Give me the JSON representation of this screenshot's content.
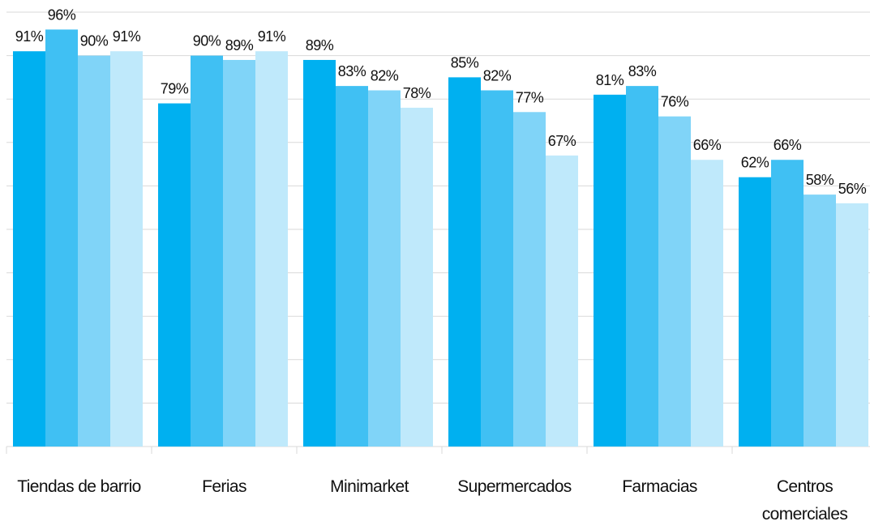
{
  "chart_data": {
    "type": "bar",
    "categories": [
      "Tiendas de barrio",
      "Ferias",
      "Minimarket",
      "Supermercados",
      "Farmacias",
      "Centros comerciales"
    ],
    "series": [
      {
        "color": "#00b0f0",
        "values": [
          91,
          79,
          89,
          85,
          81,
          62
        ],
        "value_labels": [
          "91%",
          "79%",
          "89%",
          "85%",
          "81%",
          "62%"
        ]
      },
      {
        "color": "#40c0f3",
        "values": [
          96,
          90,
          83,
          82,
          83,
          66
        ],
        "value_labels": [
          "96%",
          "90%",
          "83%",
          "82%",
          "83%",
          "66%"
        ]
      },
      {
        "color": "#80d4f8",
        "values": [
          90,
          89,
          82,
          77,
          76,
          58
        ],
        "value_labels": [
          "90%",
          "89%",
          "82%",
          "77%",
          "76%",
          "58%"
        ]
      },
      {
        "color": "#bfe9fb",
        "values": [
          91,
          91,
          78,
          67,
          66,
          56
        ],
        "value_labels": [
          "91%",
          "91%",
          "78%",
          "67%",
          "66%",
          "56%"
        ]
      }
    ],
    "ylim": [
      0,
      100
    ],
    "yticks": [
      0,
      10,
      20,
      30,
      40,
      50,
      60,
      70,
      80,
      90,
      100
    ],
    "grid": true
  }
}
